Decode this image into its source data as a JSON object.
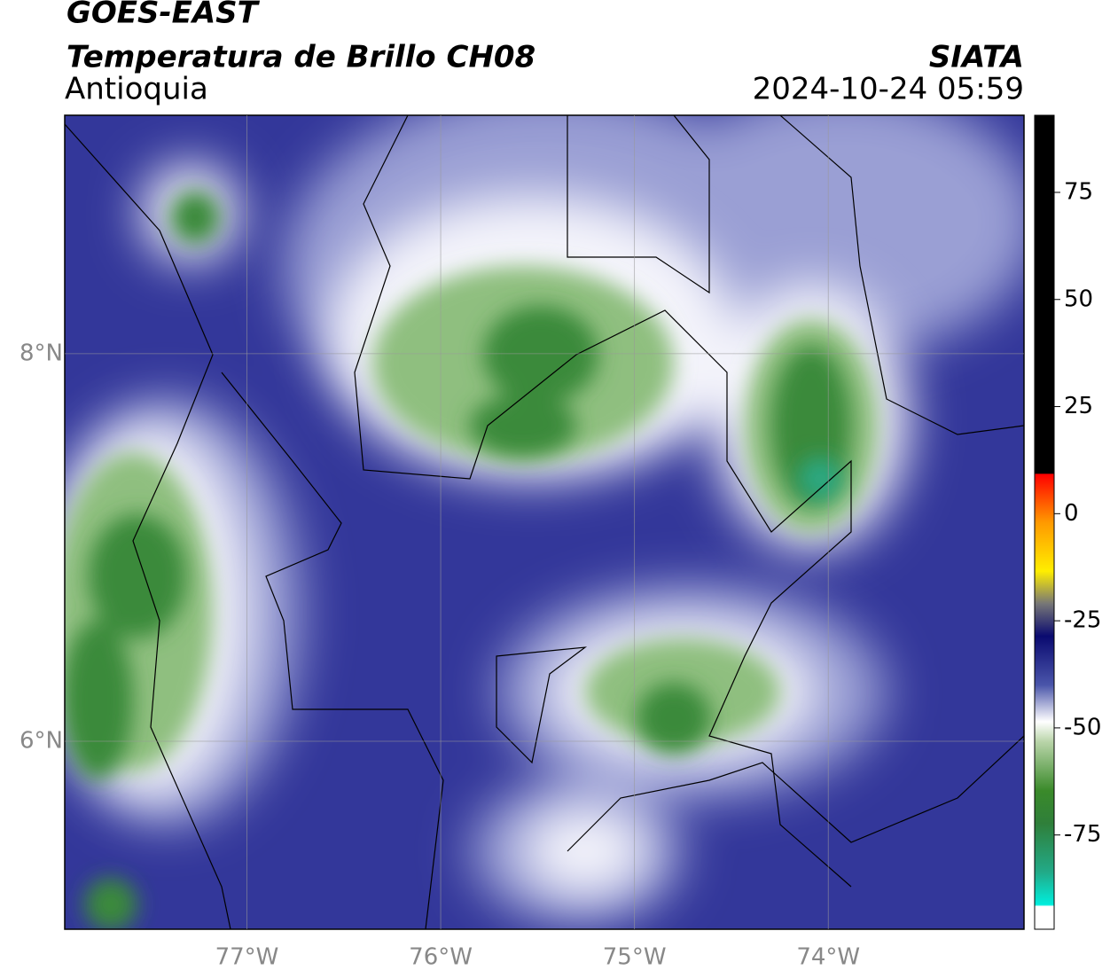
{
  "header": {
    "title": "GOES-EAST",
    "subtitle": "Temperatura de Brillo CH08",
    "region": "Antioquia",
    "source": "SIATA",
    "datetime": "2024-10-24 05:59"
  },
  "map": {
    "lonlim": [
      -77.94,
      -72.99
    ],
    "latlim": [
      5.03,
      9.23
    ],
    "lat_ticks": [
      {
        "value": 8,
        "label": "8°N"
      },
      {
        "value": 6,
        "label": "6°N"
      }
    ],
    "lon_ticks": [
      {
        "value": -77,
        "label": "77°W"
      },
      {
        "value": -76,
        "label": "76°W"
      },
      {
        "value": -75,
        "label": "75°W"
      },
      {
        "value": -74,
        "label": "74°W"
      }
    ]
  },
  "colorbar": {
    "lim": [
      -97,
      93
    ],
    "ticks": [
      75,
      50,
      25,
      0,
      -25,
      -50,
      -75
    ]
  }
}
